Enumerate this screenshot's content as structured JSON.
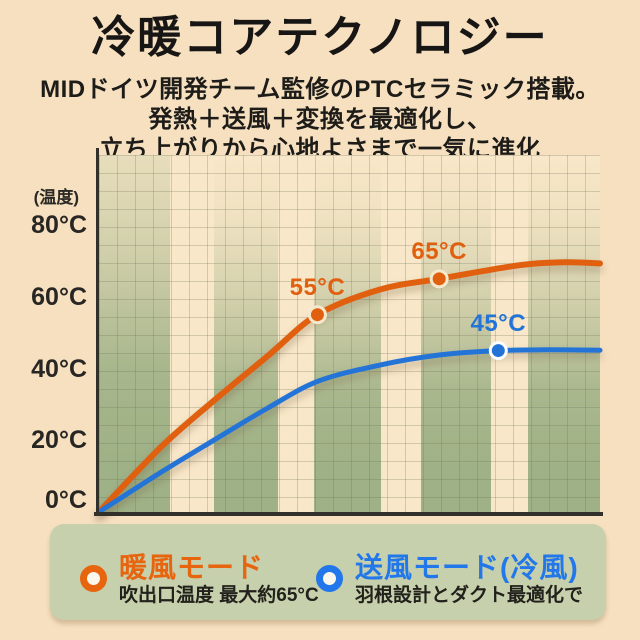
{
  "page": {
    "background_color": "#f6e0c0"
  },
  "header": {
    "title": "冷暖コアテクノロジー",
    "subtitle_lines": [
      "MIDドイツ開発チーム監修のPTCセラミック搭載。",
      "発熱＋送風＋変換を最適化し、",
      "立ち上がりから心地よさまで一気に進化"
    ]
  },
  "chart_data": {
    "type": "line",
    "title": "",
    "xlabel": "",
    "ylabel": "(温度)",
    "ylim": [
      0,
      99
    ],
    "grid": true,
    "legend_position": "bottom",
    "y_ticks": [
      {
        "label": "80°C",
        "value": 80
      },
      {
        "label": "60°C",
        "value": 60
      },
      {
        "label": "40°C",
        "value": 40
      },
      {
        "label": "20°C",
        "value": 20
      },
      {
        "label": "0°C",
        "value": 0
      }
    ],
    "series": [
      {
        "key": "warm-air",
        "name": "暖風モード",
        "color": "#e06010",
        "dot_ring": "#f6e8cc",
        "points": [
          [
            0,
            0
          ],
          [
            0.123,
            18
          ],
          [
            0.229,
            31
          ],
          [
            0.337,
            43.5
          ],
          [
            0.436,
            55
          ],
          [
            0.56,
            62
          ],
          [
            0.679,
            65
          ],
          [
            0.84,
            68.8
          ],
          [
            0.93,
            69.6
          ],
          [
            1,
            69.3
          ]
        ],
        "annotations": [
          {
            "label": "55°C",
            "x": 0.436,
            "value": 55
          },
          {
            "label": "65°C",
            "x": 0.679,
            "value": 65
          }
        ]
      },
      {
        "key": "fan-air",
        "name": "送風モード(冷風)",
        "color": "#2474d8",
        "dot_ring": "#ffffff",
        "points": [
          [
            0,
            0
          ],
          [
            0.123,
            11
          ],
          [
            0.229,
            20
          ],
          [
            0.337,
            29
          ],
          [
            0.438,
            36.5
          ],
          [
            0.562,
            41
          ],
          [
            0.681,
            43.8
          ],
          [
            0.797,
            45
          ],
          [
            0.9,
            45.2
          ],
          [
            1,
            45.1
          ]
        ],
        "annotations": [
          {
            "label": "45°C",
            "x": 0.797,
            "value": 45
          }
        ]
      }
    ]
  },
  "legend": {
    "items": [
      {
        "label": "暖風モード",
        "description": "吹出口温度 最大約65°C",
        "color": "#e8650f"
      },
      {
        "label": "送風モード(冷風)",
        "description": "羽根設計とダクト最適化で",
        "color": "#2277ea"
      }
    ]
  }
}
